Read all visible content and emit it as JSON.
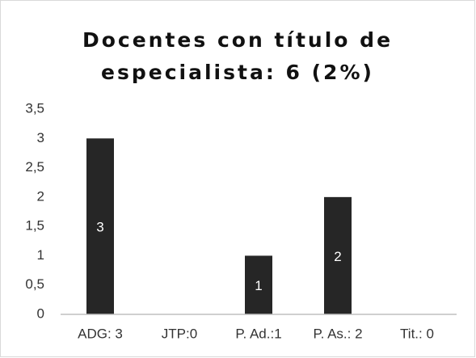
{
  "chart_data": {
    "type": "bar",
    "title": "Docentes con título de especialista: 6 (2%)",
    "categories": [
      "ADG: 3",
      "JTP:0",
      "P. Ad.:1",
      "P. As.: 2",
      "Tit.: 0"
    ],
    "values": [
      3,
      0,
      1,
      2,
      0
    ],
    "value_labels": [
      "3",
      null,
      "1",
      "2",
      null
    ],
    "color": "#262626",
    "ylim": [
      0,
      3.5
    ],
    "yticks": [
      0,
      {
        "value": 0.5,
        "label": "0,5"
      },
      1,
      {
        "value": 1.5,
        "label": "1,5"
      },
      2,
      {
        "value": 2.5,
        "label": "2,5"
      },
      3,
      {
        "value": 3.5,
        "label": "3,5"
      }
    ],
    "grid": false
  }
}
